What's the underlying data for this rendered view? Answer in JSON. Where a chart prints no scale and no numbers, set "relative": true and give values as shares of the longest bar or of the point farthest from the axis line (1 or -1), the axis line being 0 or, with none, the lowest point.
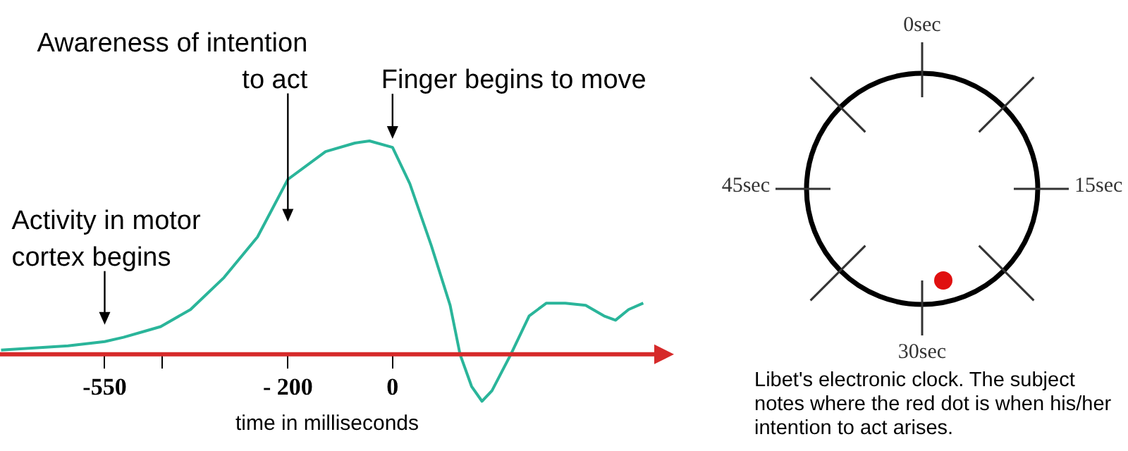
{
  "chart_data": [
    {
      "type": "line",
      "xlabel": "time in milliseconds",
      "relative": true,
      "x": [
        -748,
        -684,
        -620,
        -550,
        -514,
        -471,
        -443,
        -386,
        -322,
        -258,
        -200,
        -128,
        -72,
        -44,
        0,
        33,
        74,
        110,
        129,
        151,
        171,
        190,
        226,
        261,
        294,
        330,
        369,
        404,
        426,
        451,
        479
      ],
      "series": [
        {
          "color": "#2ab59a",
          "values": [
            0.02,
            0.03,
            0.04,
            0.06,
            0.08,
            0.11,
            0.13,
            0.21,
            0.36,
            0.55,
            0.82,
            0.95,
            0.99,
            1,
            0.97,
            0.8,
            0.51,
            0.23,
            0,
            -0.15,
            -0.22,
            -0.17,
            0,
            0.18,
            0.24,
            0.24,
            0.23,
            0.18,
            0.16,
            0.21,
            0.24
          ]
        }
      ],
      "xlim": [
        -750,
        500
      ],
      "xticks": [
        {
          "value": -550,
          "label": "-550"
        },
        {
          "value": -440,
          "label": null
        },
        {
          "value": -200,
          "label": "- 200"
        },
        0
      ],
      "annotations": [
        "Activity in motor cortex begins",
        "Awareness of intention to act",
        "Finger begins to move"
      ]
    },
    {
      "type": "other",
      "annotations": [
        "0sec",
        "15sec",
        "30sec",
        "45sec",
        "Libet's electronic clock. The subject notes where the red dot is when his/her intention to act arises."
      ]
    }
  ]
}
